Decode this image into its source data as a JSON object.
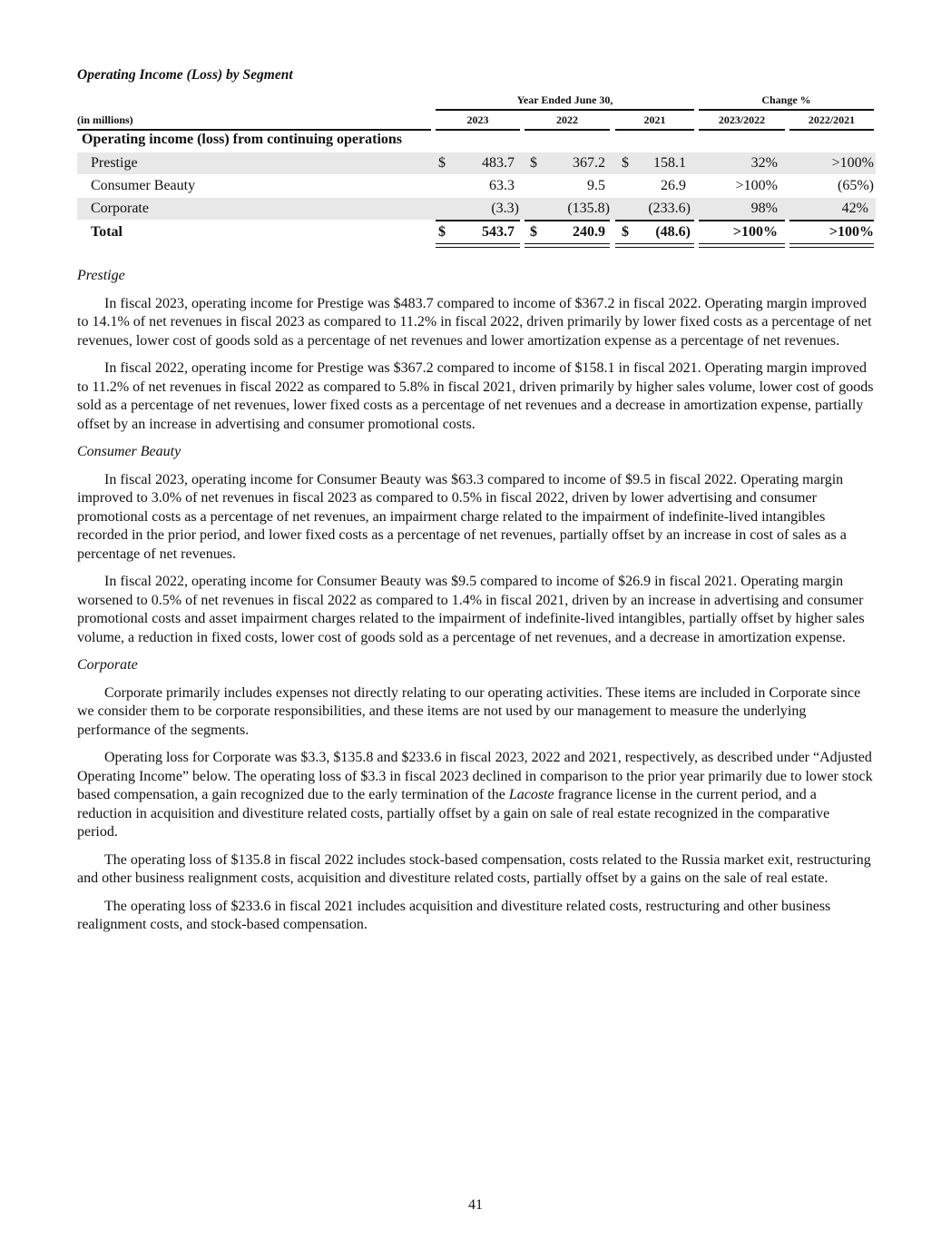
{
  "title": "Operating Income (Loss) by Segment",
  "table": {
    "group_headers": {
      "years": "Year Ended June 30,",
      "change": "Change %"
    },
    "units_label": "(in millions)",
    "columns": [
      "2023",
      "2022",
      "2021",
      "2023/2022",
      "2022/2021"
    ],
    "section_label": "Operating income (loss) from continuing operations",
    "rows": [
      {
        "label": "Prestige",
        "c2023": "483.7",
        "c2022": "367.2",
        "c2021": "158.1",
        "ch1": "32%",
        "ch2": ">100%",
        "dollar": "$"
      },
      {
        "label": "Consumer Beauty",
        "c2023": "63.3",
        "c2022": "9.5",
        "c2021": "26.9",
        "ch1": ">100%",
        "ch2": "(65%)"
      },
      {
        "label": "Corporate",
        "c2023": "(3.3)",
        "c2022": "(135.8)",
        "c2021": "(233.6)",
        "ch1": "98%",
        "ch2": "42%"
      },
      {
        "label": "Total",
        "c2023": "543.7",
        "c2022": "240.9",
        "c2021": "(48.6)",
        "ch1": ">100%",
        "ch2": ">100%",
        "dollar": "$"
      }
    ]
  },
  "sections": [
    {
      "heading": "Prestige",
      "paragraphs": [
        "In fiscal 2023, operating income for Prestige was $483.7 compared to income of $367.2 in fiscal 2022. Operating margin improved to 14.1% of net revenues in fiscal 2023 as compared to 11.2% in fiscal 2022, driven primarily by lower fixed costs as a percentage of net revenues, lower cost of goods sold as a percentage of net revenues and lower amortization expense as a percentage of net revenues.",
        "In fiscal 2022, operating income for Prestige was $367.2 compared to income of $158.1 in fiscal 2021. Operating margin improved to 11.2% of net revenues in fiscal 2022 as compared to 5.8% in fiscal 2021, driven primarily by higher sales volume, lower cost of goods sold as a percentage of net revenues, lower fixed costs as a percentage of net revenues and a decrease in amortization expense, partially offset by an increase in advertising and consumer promotional costs."
      ]
    },
    {
      "heading": "Consumer Beauty",
      "paragraphs": [
        "In fiscal 2023, operating income for Consumer Beauty was $63.3 compared to income of $9.5 in fiscal 2022. Operating margin improved to 3.0% of net revenues in fiscal 2023 as compared to 0.5% in fiscal 2022, driven by lower advertising and consumer promotional costs as a percentage of net revenues, an impairment charge related to the impairment of indefinite-lived intangibles recorded in the prior period, and lower fixed costs as a percentage of net revenues, partially offset by an increase in cost of sales as a percentage of net revenues.",
        "In fiscal 2022, operating income for Consumer Beauty was $9.5 compared to income of $26.9 in fiscal 2021. Operating margin worsened to 0.5% of net revenues in fiscal 2022 as compared to 1.4% in fiscal 2021, driven by an increase in advertising and consumer promotional costs and asset impairment charges related to the impairment of indefinite-lived intangibles, partially offset by higher sales volume, a reduction in fixed costs, lower cost of goods sold as a percentage of net revenues, and a decrease in amortization expense."
      ]
    },
    {
      "heading": "Corporate",
      "paragraphs": [
        "Corporate primarily includes expenses not directly relating to our operating activities. These items are included in Corporate since we consider them to be corporate responsibilities, and these items are not used by our management to measure the underlying performance of the segments.",
        "Operating loss for Corporate was $3.3, $135.8 and $233.6 in fiscal 2023, 2022 and 2021, respectively, as described under “Adjusted Operating Income” below. The operating loss of $3.3 in fiscal 2023 declined in comparison to the prior year primarily due to lower stock based compensation, a gain recognized due to the early termination of the ",
        "The operating loss of $135.8 in fiscal 2022 includes stock-based compensation, costs related to the Russia market exit, restructuring and other business realignment costs, acquisition and divestiture related costs, partially offset by a gains on the sale of real estate.",
        "The operating loss of $233.6 in fiscal 2021 includes acquisition and divestiture related costs, restructuring and other business realignment costs, and stock-based compensation."
      ]
    }
  ],
  "corporate_p2_italic": "Lacoste",
  "corporate_p2_tail": " fragrance license in the current period, and a reduction in acquisition and divestiture related costs, partially offset by a gain on sale of real estate recognized in the comparative period.",
  "page_number": "41"
}
